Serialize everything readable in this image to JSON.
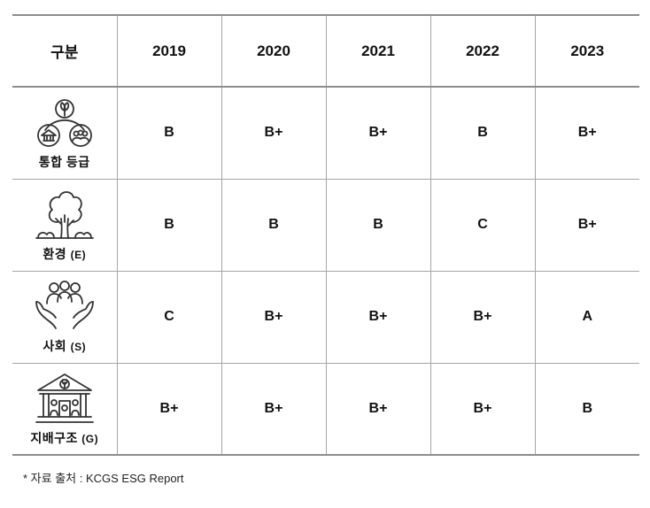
{
  "header": {
    "category": "구분",
    "years": [
      "2019",
      "2020",
      "2021",
      "2022",
      "2023"
    ]
  },
  "rows": [
    {
      "label": "통합 등급",
      "code": "",
      "icon": "integrated-rating-icon",
      "grades": [
        "B",
        "B+",
        "B+",
        "B",
        "B+"
      ]
    },
    {
      "label": "환경",
      "code": "(E)",
      "icon": "tree-icon",
      "grades": [
        "B",
        "B",
        "B",
        "C",
        "B+"
      ]
    },
    {
      "label": "사회",
      "code": "(S)",
      "icon": "people-hands-icon",
      "grades": [
        "C",
        "B+",
        "B+",
        "B+",
        "A"
      ]
    },
    {
      "label": "지배구조",
      "code": "(G)",
      "icon": "building-icon",
      "grades": [
        "B+",
        "B+",
        "B+",
        "B+",
        "B"
      ]
    }
  ],
  "footnote": "* 자료 출처 : KCGS ESG Report",
  "colors": {
    "border": "#a6a6a6",
    "rule": "#8c8c8c",
    "icon_stroke": "#333333"
  }
}
